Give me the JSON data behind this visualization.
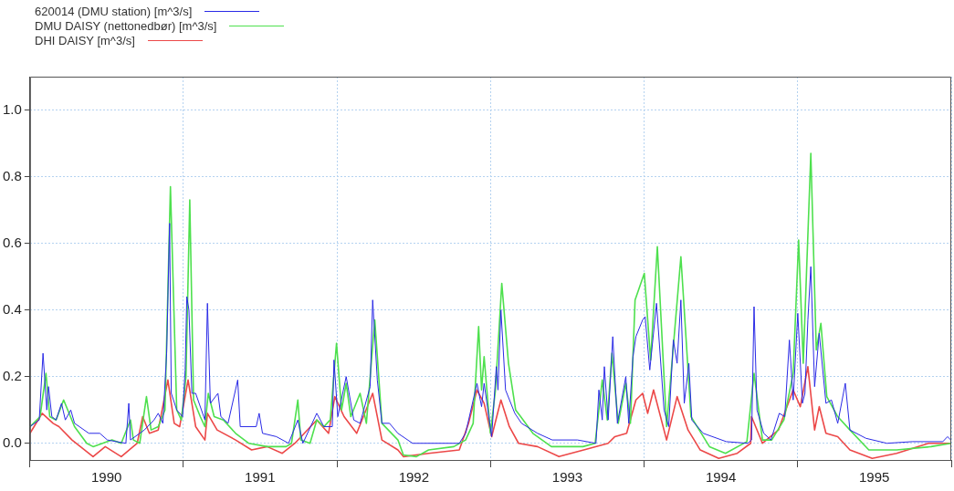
{
  "chart_data": {
    "type": "line",
    "xlim": [
      "1990-01-01",
      "1996-01-01"
    ],
    "xticks": [
      {
        "value": "1990-01-01",
        "label": null
      },
      {
        "value": "1990-07-02",
        "label": "1990"
      },
      {
        "value": "1991-01-01",
        "label": null
      },
      {
        "value": "1991-07-02",
        "label": "1991"
      },
      {
        "value": "1992-01-01",
        "label": null
      },
      {
        "value": "1992-07-02",
        "label": "1992"
      },
      {
        "value": "1993-01-01",
        "label": null
      },
      {
        "value": "1993-07-02",
        "label": "1993"
      },
      {
        "value": "1994-01-01",
        "label": null
      },
      {
        "value": "1994-07-02",
        "label": "1994"
      },
      {
        "value": "1995-01-01",
        "label": null
      },
      {
        "value": "1995-07-02",
        "label": "1995"
      },
      {
        "value": "1996-01-01",
        "label": null
      }
    ],
    "ylim": [
      -0.05,
      1.1
    ],
    "yticks": [
      {
        "value": 0,
        "label": "0.0"
      },
      {
        "value": 0.2,
        "label": "0.2"
      },
      {
        "value": 0.4,
        "label": "0.4"
      },
      {
        "value": 0.6,
        "label": "0.6"
      },
      {
        "value": 0.8,
        "label": "0.8"
      },
      {
        "value": 1,
        "label": "1.0"
      }
    ],
    "grid": true,
    "legend": "top left",
    "marker": "none",
    "line_style": "solid",
    "series": [
      {
        "name": "620014 (DMU station) [m^3/s]",
        "color": "#2a2ae6",
        "x": [
          "1990-01-01",
          "1990-01-23",
          "1990-02-01",
          "1990-02-10",
          "1990-02-14",
          "1990-02-22",
          "1990-03-04",
          "1990-03-17",
          "1990-03-26",
          "1990-04-08",
          "1990-04-17",
          "1990-05-21",
          "1990-06-16",
          "1990-07-04",
          "1990-08-17",
          "1990-08-24",
          "1990-08-28",
          "1990-09-30",
          "1990-10-23",
          "1990-11-02",
          "1990-11-13",
          "1990-11-22",
          "1990-11-29",
          "1990-12-03",
          "1990-12-16",
          "1990-12-30",
          "1991-01-05",
          "1991-01-09",
          "1991-01-14",
          "1991-01-21",
          "1991-01-30",
          "1991-02-21",
          "1991-02-27",
          "1991-03-06",
          "1991-03-24",
          "1991-03-31",
          "1991-04-17",
          "1991-05-10",
          "1991-05-16",
          "1991-06-23",
          "1991-06-30",
          "1991-07-08",
          "1991-08-10",
          "1991-09-08",
          "1991-09-30",
          "1991-10-12",
          "1991-11-14",
          "1991-12-01",
          "1991-12-21",
          "1991-12-25",
          "1992-01-03",
          "1992-01-23",
          "1992-02-10",
          "1992-02-25",
          "1992-03-20",
          "1992-03-26",
          "1992-04-06",
          "1992-04-17",
          "1992-05-05",
          "1992-05-25",
          "1992-06-29",
          "1992-10-18",
          "1992-11-02",
          "1992-11-29",
          "1992-12-10",
          "1992-12-16",
          "1993-01-03",
          "1993-01-14",
          "1993-01-18",
          "1993-01-25",
          "1993-02-05",
          "1993-02-27",
          "1993-03-15",
          "1993-04-22",
          "1993-05-27",
          "1993-07-26",
          "1993-09-08",
          "1993-09-15",
          "1993-09-23",
          "1993-09-28",
          "1993-10-07",
          "1993-10-18",
          "1993-10-29",
          "1993-11-18",
          "1993-11-25",
          "1993-12-05",
          "1993-12-12",
          "1993-12-28",
          "1994-01-03",
          "1994-01-14",
          "1994-01-30",
          "1994-02-17",
          "1994-02-28",
          "1994-03-11",
          "1994-03-20",
          "1994-03-29",
          "1994-04-06",
          "1994-04-17",
          "1994-04-24",
          "1994-05-21",
          "1994-07-15",
          "1994-09-04",
          "1994-09-13",
          "1994-09-19",
          "1994-09-26",
          "1994-10-12",
          "1994-10-29",
          "1994-11-18",
          "1994-12-01",
          "1994-12-12",
          "1994-12-21",
          "1995-01-01",
          "1995-01-12",
          "1995-01-18",
          "1995-01-25",
          "1995-02-01",
          "1995-02-10",
          "1995-02-21",
          "1995-03-09",
          "1995-03-22",
          "1995-04-06",
          "1995-04-24",
          "1995-05-05",
          "1995-06-12",
          "1995-08-01",
          "1995-09-30",
          "1995-12-12",
          "1995-12-23",
          "1995-12-31"
        ],
        "values": [
          0.05,
          0.07,
          0.27,
          0.1,
          0.17,
          0.08,
          0.07,
          0.12,
          0.07,
          0.1,
          0.06,
          0.03,
          0.03,
          0.01,
          0.0,
          0.12,
          0.01,
          0.04,
          0.07,
          0.09,
          0.06,
          0.27,
          0.66,
          0.15,
          0.1,
          0.08,
          0.22,
          0.44,
          0.4,
          0.15,
          0.15,
          0.07,
          0.42,
          0.12,
          0.15,
          0.08,
          0.06,
          0.19,
          0.05,
          0.05,
          0.09,
          0.03,
          0.02,
          0.0,
          0.07,
          0.0,
          0.09,
          0.05,
          0.05,
          0.25,
          0.08,
          0.2,
          0.07,
          0.06,
          0.17,
          0.43,
          0.19,
          0.06,
          0.06,
          0.03,
          0.0,
          0.0,
          0.03,
          0.18,
          0.11,
          0.18,
          0.02,
          0.23,
          0.16,
          0.4,
          0.16,
          0.09,
          0.06,
          0.03,
          0.01,
          0.01,
          0.0,
          0.16,
          0.07,
          0.23,
          0.07,
          0.32,
          0.06,
          0.2,
          0.06,
          0.26,
          0.32,
          0.37,
          0.38,
          0.22,
          0.42,
          0.1,
          0.05,
          0.31,
          0.24,
          0.43,
          0.12,
          0.24,
          0.07,
          0.03,
          0.005,
          0.0,
          0.01,
          0.41,
          0.1,
          0.03,
          0.01,
          0.09,
          0.08,
          0.31,
          0.13,
          0.39,
          0.12,
          0.15,
          0.37,
          0.53,
          0.17,
          0.33,
          0.12,
          0.13,
          0.06,
          0.18,
          0.04,
          0.015,
          0.0,
          0.005,
          0.005,
          0.02,
          0.01
        ]
      },
      {
        "name": "DMU DAISY (nettonedbør) [m^3/s]",
        "color": "#4ee04e",
        "x": [
          "1990-01-01",
          "1990-01-25",
          "1990-02-08",
          "1990-02-17",
          "1990-03-04",
          "1990-03-22",
          "1990-04-17",
          "1990-05-16",
          "1990-05-31",
          "1990-07-15",
          "1990-08-06",
          "1990-08-28",
          "1990-09-04",
          "1990-09-19",
          "1990-10-05",
          "1990-10-16",
          "1990-11-02",
          "1990-11-18",
          "1990-12-01",
          "1990-12-16",
          "1990-12-27",
          "1991-01-07",
          "1991-01-16",
          "1991-01-25",
          "1991-02-10",
          "1991-02-21",
          "1991-03-01",
          "1991-03-15",
          "1991-04-06",
          "1991-05-05",
          "1991-06-05",
          "1991-07-19",
          "1991-09-02",
          "1991-09-15",
          "1991-09-30",
          "1991-10-07",
          "1991-10-29",
          "1991-11-14",
          "1991-12-01",
          "1991-12-16",
          "1991-12-31",
          "1992-01-12",
          "1992-01-23",
          "1992-02-03",
          "1992-02-25",
          "1992-03-11",
          "1992-03-31",
          "1992-04-17",
          "1992-05-25",
          "1992-06-07",
          "1992-07-08",
          "1992-08-06",
          "1992-10-05",
          "1992-11-02",
          "1992-11-20",
          "1992-12-03",
          "1992-12-10",
          "1992-12-16",
          "1992-12-31",
          "1993-01-12",
          "1993-01-27",
          "1993-02-12",
          "1993-03-01",
          "1993-03-13",
          "1993-04-11",
          "1993-05-25",
          "1993-08-08",
          "1993-09-06",
          "1993-09-23",
          "1993-10-05",
          "1993-10-16",
          "1993-10-31",
          "1993-11-18",
          "1993-11-29",
          "1993-12-10",
          "1994-01-01",
          "1994-01-16",
          "1994-02-01",
          "1994-02-23",
          "1994-03-29",
          "1994-04-22",
          "1994-06-05",
          "1994-07-13",
          "1994-09-02",
          "1994-09-19",
          "1994-10-09",
          "1994-10-31",
          "1994-11-29",
          "1994-12-21",
          "1995-01-03",
          "1995-01-14",
          "1995-02-01",
          "1995-02-14",
          "1995-02-25",
          "1995-03-11",
          "1995-04-06",
          "1995-05-05",
          "1995-06-19",
          "1995-08-24",
          "1995-11-14",
          "1995-12-31"
        ],
        "values": [
          0.05,
          0.08,
          0.21,
          0.08,
          0.07,
          0.13,
          0.05,
          0.0,
          -0.01,
          0.01,
          0.0,
          0.07,
          0.01,
          0.0,
          0.14,
          0.04,
          0.05,
          0.1,
          0.77,
          0.1,
          0.07,
          0.2,
          0.73,
          0.13,
          0.08,
          0.05,
          0.15,
          0.08,
          0.07,
          0.03,
          0.0,
          -0.01,
          -0.01,
          0.0,
          0.13,
          0.01,
          0.0,
          0.07,
          0.05,
          0.07,
          0.3,
          0.1,
          0.18,
          0.08,
          0.15,
          0.06,
          0.37,
          0.06,
          0.01,
          -0.035,
          -0.04,
          -0.02,
          -0.01,
          0.01,
          0.06,
          0.35,
          0.16,
          0.26,
          0.03,
          0.16,
          0.48,
          0.24,
          0.1,
          0.08,
          0.03,
          -0.01,
          -0.01,
          0.0,
          0.19,
          0.07,
          0.27,
          0.06,
          0.18,
          0.06,
          0.43,
          0.51,
          0.25,
          0.59,
          0.05,
          0.56,
          0.08,
          -0.01,
          -0.03,
          0.005,
          0.21,
          0.01,
          0.01,
          0.07,
          0.21,
          0.61,
          0.24,
          0.87,
          0.28,
          0.36,
          0.14,
          0.08,
          0.04,
          -0.02,
          -0.02,
          -0.01,
          0.0
        ]
      },
      {
        "name": "DHI DAISY [m^3/s]",
        "color": "#ec4848",
        "x": [
          "1990-01-01",
          "1990-01-30",
          "1990-02-25",
          "1990-03-11",
          "1990-04-11",
          "1990-05-31",
          "1990-06-29",
          "1990-08-06",
          "1990-09-13",
          "1990-09-26",
          "1990-10-12",
          "1990-11-02",
          "1990-11-25",
          "1990-12-10",
          "1990-12-23",
          "1991-01-12",
          "1991-01-30",
          "1991-02-21",
          "1991-02-27",
          "1991-03-22",
          "1991-05-05",
          "1991-06-12",
          "1991-07-19",
          "1991-08-24",
          "1991-09-23",
          "1991-11-14",
          "1991-12-12",
          "1991-12-27",
          "1992-01-18",
          "1992-02-17",
          "1992-03-26",
          "1992-04-17",
          "1992-05-25",
          "1992-06-07",
          "1992-08-06",
          "1992-10-18",
          "1992-11-09",
          "1992-11-29",
          "1992-12-16",
          "1993-01-03",
          "1993-01-25",
          "1993-02-14",
          "1993-03-08",
          "1993-04-22",
          "1993-06-12",
          "1993-08-10",
          "1993-10-07",
          "1993-10-23",
          "1993-11-20",
          "1993-12-12",
          "1993-12-28",
          "1994-01-09",
          "1994-01-23",
          "1994-02-23",
          "1994-03-20",
          "1994-04-15",
          "1994-05-14",
          "1994-06-27",
          "1994-08-10",
          "1994-09-11",
          "1994-09-13",
          "1994-10-09",
          "1994-11-16",
          "1994-12-21",
          "1995-01-07",
          "1995-01-25",
          "1995-02-10",
          "1995-02-21",
          "1995-03-09",
          "1995-04-06",
          "1995-05-05",
          "1995-06-27",
          "1995-08-24",
          "1995-11-08",
          "1995-12-31"
        ],
        "values": [
          0.03,
          0.09,
          0.06,
          0.05,
          0.01,
          -0.04,
          -0.01,
          -0.04,
          0.0,
          0.08,
          0.03,
          0.04,
          0.19,
          0.06,
          0.05,
          0.19,
          0.05,
          0.01,
          0.09,
          0.04,
          0.01,
          -0.02,
          -0.01,
          -0.03,
          0.0,
          0.07,
          0.03,
          0.14,
          0.08,
          0.03,
          0.15,
          0.01,
          -0.02,
          -0.04,
          -0.03,
          -0.02,
          0.06,
          0.16,
          0.12,
          0.02,
          0.13,
          0.05,
          0.0,
          -0.01,
          -0.04,
          -0.02,
          0.0,
          0.02,
          0.03,
          0.13,
          0.15,
          0.09,
          0.16,
          0.01,
          0.14,
          0.04,
          -0.02,
          -0.045,
          -0.03,
          0.0,
          0.08,
          0.0,
          0.04,
          0.16,
          0.11,
          0.23,
          0.04,
          0.11,
          0.03,
          0.02,
          -0.02,
          -0.045,
          -0.03,
          0.0,
          0.0
        ]
      }
    ]
  }
}
